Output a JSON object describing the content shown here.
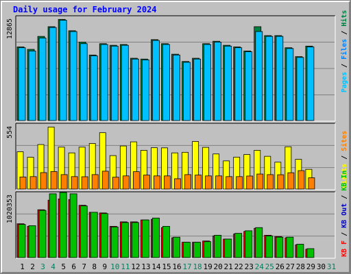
{
  "title": "Daily usage for February 2024",
  "colors": {
    "pages": "#00c0ff",
    "files": "#0080ff",
    "hits": "#008040",
    "visits": "#ffff00",
    "sites": "#ff8000",
    "kbin": "#00c000",
    "kbf": "#ff0000",
    "kbout": "#0000c0"
  },
  "chart_data": [
    {
      "type": "bar",
      "name": "hits-files-pages",
      "max_label": "12865",
      "ylim": [
        0,
        12865
      ],
      "legend": [
        "Pages",
        "Files",
        "Hits"
      ],
      "categories": [
        "1",
        "2",
        "3",
        "4",
        "5",
        "6",
        "7",
        "8",
        "9",
        "10",
        "11",
        "12",
        "13",
        "14",
        "15",
        "16",
        "17",
        "18",
        "19",
        "20",
        "21",
        "22",
        "23",
        "24",
        "25",
        "26",
        "27",
        "28",
        "29",
        "30",
        "31"
      ],
      "weekend_days": [
        3,
        4,
        10,
        11,
        17,
        18,
        24,
        25,
        31
      ],
      "series": [
        {
          "name": "Hits",
          "values": [
            9100,
            8800,
            10400,
            11600,
            12500,
            11100,
            9700,
            8100,
            9500,
            9300,
            9400,
            7700,
            7600,
            10000,
            9500,
            8200,
            7300,
            7700,
            9500,
            9800,
            9300,
            9100,
            8600,
            11600,
            10500,
            10500,
            9000,
            7900,
            9200,
            0,
            0
          ]
        },
        {
          "name": "Pages",
          "values": [
            9000,
            8600,
            10200,
            11500,
            12400,
            11000,
            9500,
            8000,
            9400,
            9200,
            9300,
            7600,
            7500,
            9900,
            9400,
            8100,
            7200,
            7600,
            9400,
            9700,
            9200,
            9000,
            8500,
            11000,
            10400,
            10400,
            8900,
            7800,
            9100,
            0,
            0
          ]
        }
      ]
    },
    {
      "type": "bar",
      "name": "visits-sites",
      "max_label": "554",
      "ylim": [
        0,
        554
      ],
      "legend": [
        "Visits",
        "Sites"
      ],
      "series": [
        {
          "name": "Visits",
          "values": [
            318,
            271,
            379,
            528,
            357,
            308,
            357,
            388,
            480,
            285,
            367,
            402,
            330,
            352,
            351,
            308,
            313,
            405,
            355,
            299,
            240,
            272,
            294,
            330,
            279,
            229,
            360,
            253,
            168,
            0,
            0
          ]
        },
        {
          "name": "Sites",
          "values": [
            103,
            106,
            140,
            149,
            123,
            106,
            105,
            123,
            152,
            101,
            112,
            148,
            119,
            112,
            112,
            88,
            123,
            119,
            112,
            112,
            106,
            106,
            111,
            128,
            123,
            122,
            139,
            157,
            96,
            0,
            0
          ]
        }
      ]
    },
    {
      "type": "bar",
      "name": "kbin-kbout",
      "max_label": "1020353",
      "ylim": [
        0,
        1020353
      ],
      "legend": [
        "KB F",
        "KB Out",
        "KB In"
      ],
      "series": [
        {
          "name": "KB Out",
          "values": [
            530000,
            490000,
            750000,
            900000,
            920000,
            910000,
            820000,
            710000,
            700000,
            490000,
            560000,
            560000,
            590000,
            600000,
            470000,
            310000,
            240000,
            240000,
            260000,
            340000,
            290000,
            370000,
            410000,
            460000,
            350000,
            330000,
            310000,
            200000,
            130000,
            0,
            0
          ]
        },
        {
          "name": "KB In",
          "values": [
            520000,
            500000,
            740000,
            1000000,
            1020353,
            1000000,
            810000,
            710000,
            690000,
            480000,
            550000,
            550000,
            590000,
            620000,
            490000,
            320000,
            240000,
            240000,
            250000,
            350000,
            290000,
            380000,
            420000,
            470000,
            340000,
            320000,
            320000,
            210000,
            140000,
            0,
            0
          ]
        }
      ]
    }
  ]
}
